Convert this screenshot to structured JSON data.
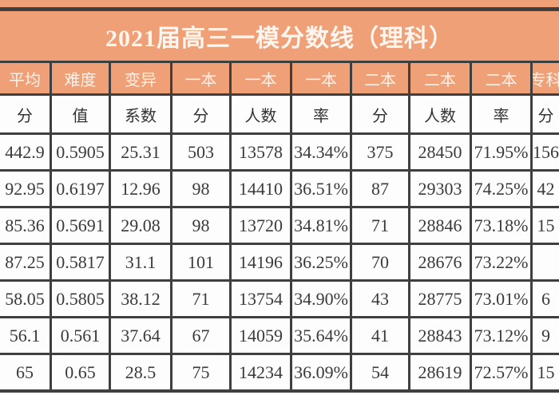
{
  "title": "2021届高三一模分数线（理科）",
  "table": {
    "header_row1": [
      "平均",
      "难度",
      "变异",
      "一本",
      "一本",
      "一本",
      "二本",
      "二本",
      "二本",
      "专科"
    ],
    "header_row2": [
      "分",
      "值",
      "系数",
      "分",
      "人数",
      "率",
      "分",
      "人数",
      "率",
      "分"
    ],
    "rows": [
      [
        "442.9",
        "0.5905",
        "25.31",
        "503",
        "13578",
        "34.34%",
        "375",
        "28450",
        "71.95%",
        "156"
      ],
      [
        "92.95",
        "0.6197",
        "12.96",
        "98",
        "14410",
        "36.51%",
        "87",
        "29303",
        "74.25%",
        "42"
      ],
      [
        "85.36",
        "0.5691",
        "29.08",
        "98",
        "13720",
        "34.81%",
        "71",
        "28846",
        "73.18%",
        "15"
      ],
      [
        "87.25",
        "0.5817",
        "31.1",
        "101",
        "14196",
        "36.25%",
        "70",
        "28676",
        "73.22%",
        ""
      ],
      [
        "58.05",
        "0.5805",
        "38.12",
        "71",
        "13754",
        "34.90%",
        "43",
        "28775",
        "73.01%",
        "6"
      ],
      [
        "56.1",
        "0.561",
        "37.64",
        "67",
        "14059",
        "35.64%",
        "41",
        "28843",
        "73.12%",
        "9"
      ],
      [
        "65",
        "0.65",
        "28.5",
        "75",
        "14234",
        "36.09%",
        "54",
        "28619",
        "72.57%",
        "15"
      ]
    ]
  },
  "colors": {
    "accent_orange": "#efa076",
    "grid_border": "#3f3f3f",
    "header_text": "#ffffff",
    "data_text": "#3a3a3a",
    "cell_background": "#fdfdfd"
  }
}
